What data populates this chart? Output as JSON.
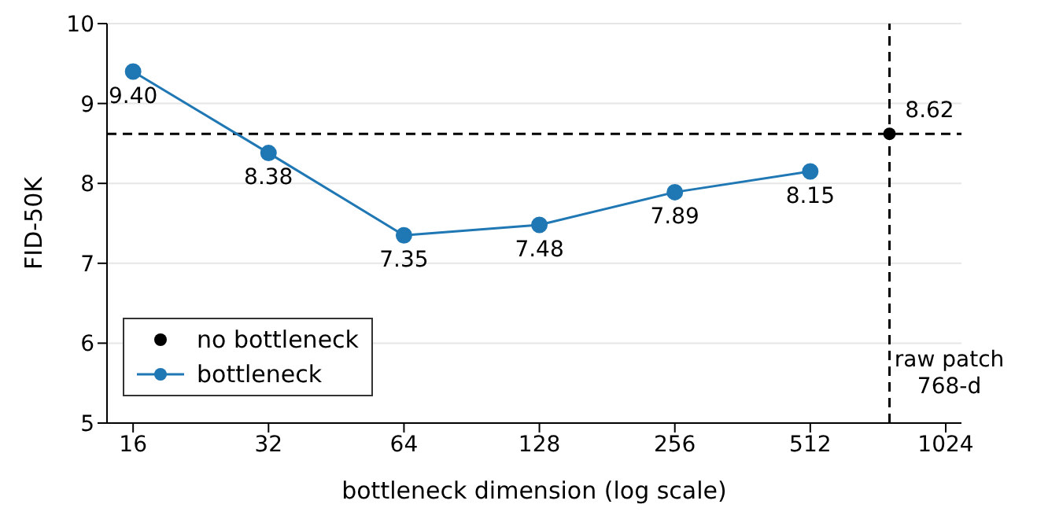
{
  "chart_data": {
    "type": "line",
    "xlabel": "bottleneck dimension (log scale)",
    "ylabel": "FID-50K",
    "log": "x",
    "xlim": [
      14,
      1110
    ],
    "xticks": [
      16,
      32,
      64,
      128,
      256,
      512,
      1024
    ],
    "ylim": [
      5,
      10
    ],
    "yticks": [
      5,
      6,
      7,
      8,
      9,
      10
    ],
    "grid": "y",
    "legend": "bottom left",
    "marker": "circle",
    "line_style": "solid",
    "series": [
      {
        "name": "no bottleneck",
        "type": "scatter",
        "color": "#000000",
        "x": [
          768
        ],
        "values": [
          8.62
        ],
        "value_labels": [
          "8.62"
        ]
      },
      {
        "name": "bottleneck",
        "color": "#1f77b4",
        "x": [
          16,
          32,
          64,
          128,
          256,
          512
        ],
        "values": [
          9.4,
          8.38,
          7.35,
          7.48,
          7.89,
          8.15
        ],
        "value_labels": [
          "9.40",
          "8.38",
          "7.35",
          "7.48",
          "7.89",
          "8.15"
        ]
      }
    ],
    "ref_lines": [
      {
        "axis": "x",
        "value": 768,
        "label": "raw patch 768-d",
        "color": "#000000",
        "line_style": "dashed"
      },
      {
        "axis": "y",
        "value": 8.62,
        "label": null,
        "color": "#000000",
        "line_style": "dashed"
      }
    ]
  }
}
